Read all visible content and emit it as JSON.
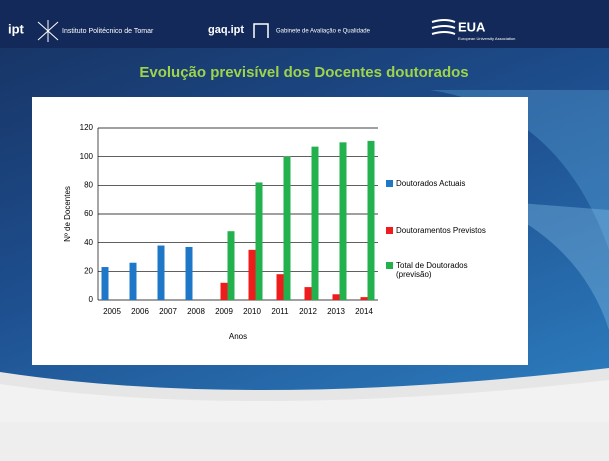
{
  "header": {
    "ipt_logo": "ipt",
    "ipt_name": "Instituto Politécnico de Tomar",
    "gaq_logo": "gaq.ipt",
    "gaq_name": "Gabinete de Avaliação e Qualidade",
    "eua_logo": "EUA",
    "eua_name": "European University Association"
  },
  "chart_data": {
    "type": "bar",
    "title": "Evolução previsível dos Docentes doutorados",
    "y_label": "Nº de Docentes",
    "x_label": "Anos",
    "categories": [
      "2005",
      "2006",
      "2007",
      "2008",
      "2009",
      "2010",
      "2011",
      "2012",
      "2013",
      "2014"
    ],
    "series": [
      {
        "name": "Doutorados Actuais",
        "color": "#1f77c8",
        "values": [
          23,
          26,
          38,
          37,
          null,
          null,
          null,
          null,
          null,
          null
        ]
      },
      {
        "name": "Doutoramentos Previstos",
        "color": "#ee1c1c",
        "values": [
          null,
          null,
          null,
          null,
          12,
          35,
          18,
          9,
          4,
          2
        ]
      },
      {
        "name": "Total de Doutorados (previsão)",
        "color": "#22b14c",
        "values": [
          null,
          null,
          null,
          null,
          48,
          82,
          100,
          107,
          110,
          111
        ]
      }
    ],
    "ylim": [
      0,
      120
    ],
    "yticks": [
      0,
      20,
      40,
      60,
      80,
      100,
      120
    ],
    "grid": true,
    "legend": "right"
  }
}
